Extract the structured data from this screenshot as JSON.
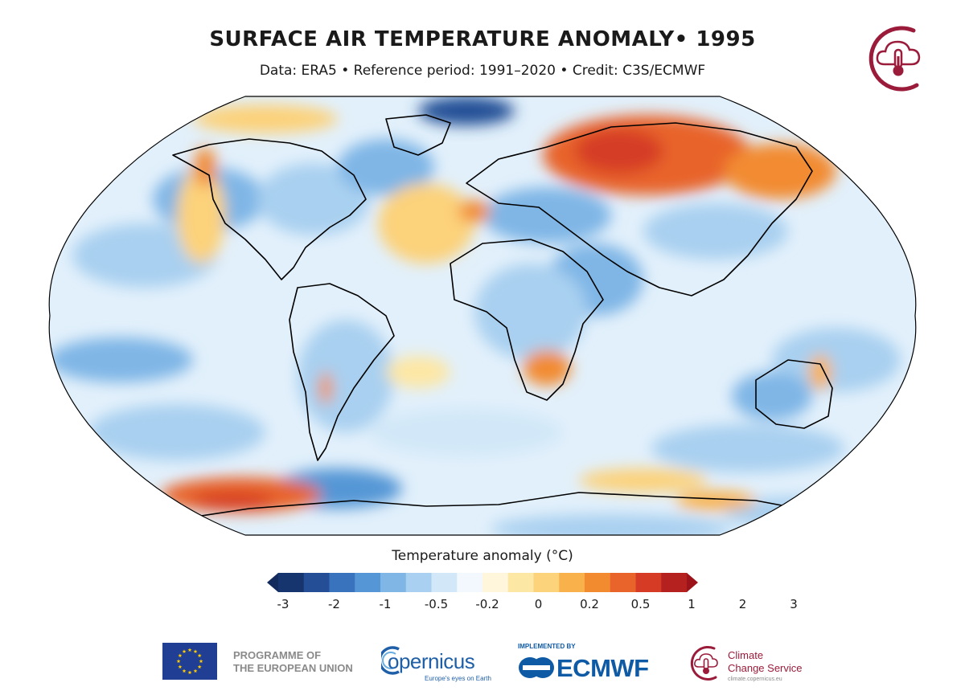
{
  "header": {
    "title": "SURFACE AIR TEMPERATURE ANOMALY• 1995",
    "subtitle": "Data: ERA5 • Reference period: 1991–2020 • Credit: C3S/ECMWF"
  },
  "colorbar": {
    "title": "Temperature anomaly (°C)",
    "ticks": [
      "-3",
      "-2",
      "-1",
      "-0.5",
      "-0.2",
      "0",
      "0.2",
      "0.5",
      "1",
      "2",
      "3"
    ],
    "colors": [
      "#16356f",
      "#244f96",
      "#3a73bd",
      "#5597d6",
      "#7fb6e6",
      "#a9d0f0",
      "#d2e8f8",
      "#f2f8fd",
      "#fff6dc",
      "#fde7a4",
      "#fcd27a",
      "#f9b14c",
      "#f28b30",
      "#e8642b",
      "#d63c25",
      "#b5211f"
    ],
    "extend_low_color": "#122a5c",
    "extend_high_color": "#9c1419"
  },
  "map": {
    "projection": "Robinson",
    "ocean_base_color": "#e2f0fb",
    "coastline_color": "#000000"
  },
  "footer": {
    "eu_line1": "PROGRAMME OF",
    "eu_line2": "THE EUROPEAN UNION",
    "copernicus_word": "opernicus",
    "copernicus_tagline": "Europe's eyes on Earth",
    "ecmwf_implemented": "IMPLEMENTED BY",
    "ecmwf_word": "ECMWF",
    "c3s_line1": "Climate",
    "c3s_line2": "Change Service",
    "c3s_url": "climate.copernicus.eu"
  },
  "brand_colors": {
    "c3s_red": "#9b1b3a",
    "copernicus_blue": "#1f5fa8",
    "ecmwf_blue": "#0f5aa5",
    "eu_blue": "#1f3e94",
    "eu_gold": "#ffcc00"
  }
}
